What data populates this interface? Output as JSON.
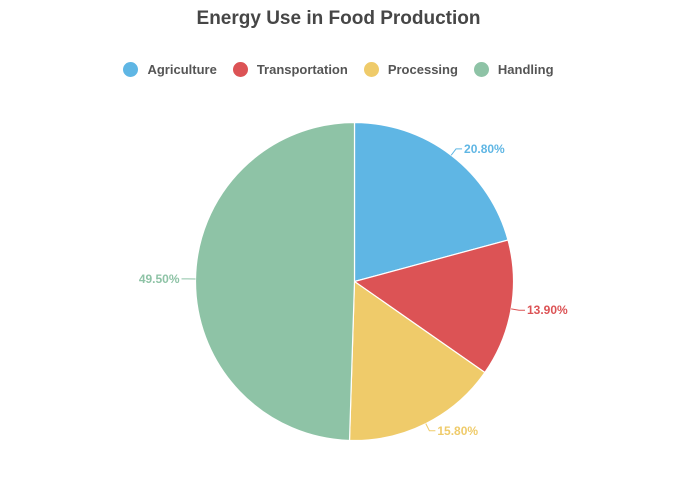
{
  "chart_data": {
    "type": "pie",
    "title": "Energy Use in Food Production",
    "legend_position": "top",
    "categories": [
      "Agriculture",
      "Transportation",
      "Processing",
      "Handling"
    ],
    "values": [
      20.8,
      13.9,
      15.8,
      49.5
    ],
    "labels": [
      "20.80%",
      "13.90%",
      "15.80%",
      "49.50%"
    ],
    "colors": [
      "#5fb6e4",
      "#dc5355",
      "#efcb6a",
      "#8ec3a6"
    ]
  }
}
